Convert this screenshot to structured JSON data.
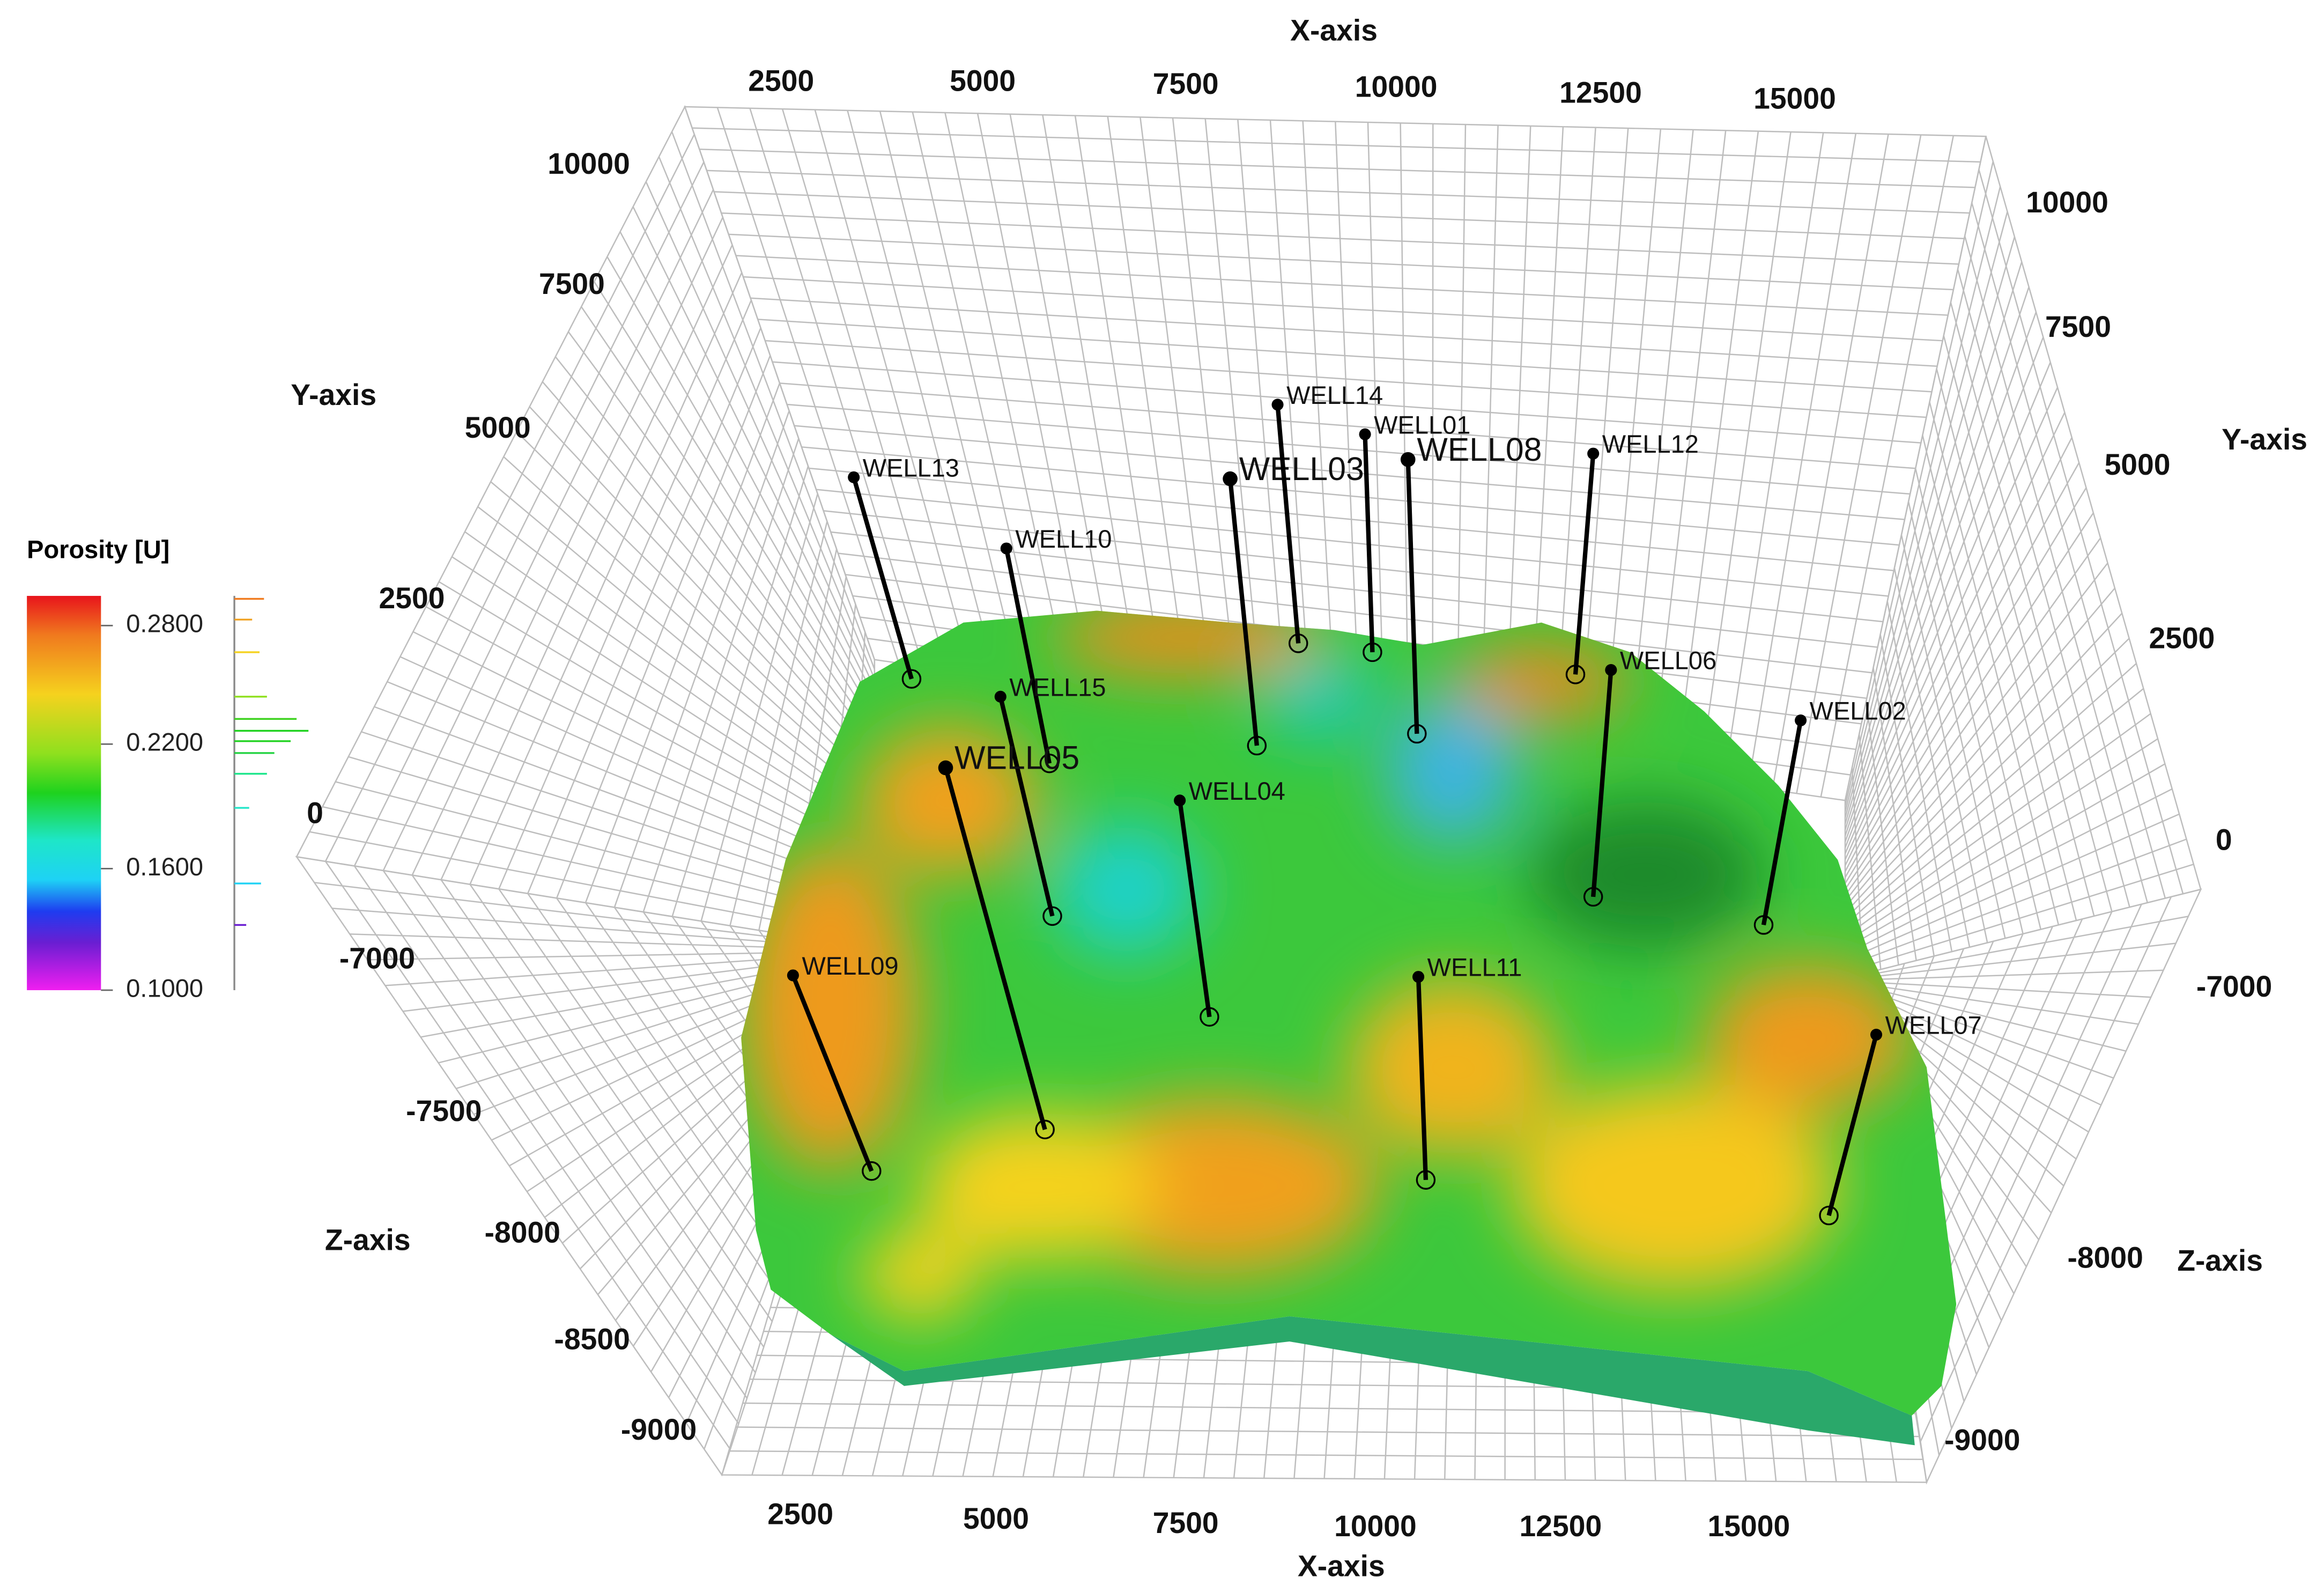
{
  "legend": {
    "title": "Porosity [U]",
    "ticks": [
      "0.2800",
      "0.2200",
      "0.1600",
      "0.1000"
    ]
  },
  "axes": {
    "x_top": {
      "title": "X-axis",
      "ticks": [
        2500,
        5000,
        7500,
        10000,
        12500,
        15000
      ]
    },
    "x_bottom": {
      "title": "X-axis",
      "ticks": [
        2500,
        5000,
        7500,
        10000,
        12500,
        15000
      ]
    },
    "y_left": {
      "title": "Y-axis",
      "ticks": [
        10000,
        7500,
        5000,
        2500,
        0
      ]
    },
    "z_left": {
      "title": "Z-axis",
      "ticks": [
        -7000,
        -7500,
        -8000,
        -8500,
        -9000
      ]
    },
    "y_right": {
      "title": "Y-axis",
      "ticks": [
        10000,
        7500,
        5000,
        2500,
        0
      ]
    },
    "z_right": {
      "title": "Z-axis",
      "ticks": [
        -7000,
        -8000,
        -9000
      ]
    }
  },
  "wells": [
    "WELL13",
    "WELL10",
    "WELL15",
    "WELL05",
    "WELL04",
    "WELL03",
    "WELL14",
    "WELL01",
    "WELL08",
    "WELL12",
    "WELL06",
    "WELL02",
    "WELL11",
    "WELL09",
    "WELL07"
  ]
}
